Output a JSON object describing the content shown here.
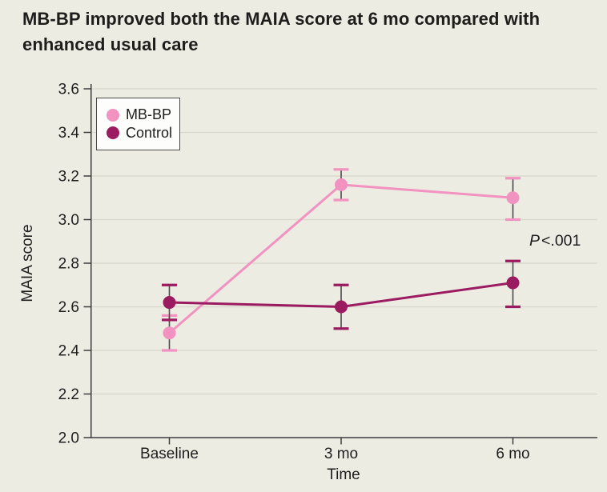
{
  "page": {
    "background_color": "#EDECE3"
  },
  "header": {
    "title_lines": [
      "MB-BP improved both the MAIA score at 6 mo compared with",
      "enhanced usual care"
    ]
  },
  "chart_data": {
    "type": "line",
    "categories": [
      "Baseline",
      "3 mo",
      "6 mo"
    ],
    "series": [
      {
        "name": "MB-BP",
        "color": "#F192C0",
        "values": [
          2.48,
          3.16,
          3.1
        ],
        "ci_low": [
          2.4,
          3.09,
          3.0
        ],
        "ci_high": [
          2.56,
          3.23,
          3.19
        ]
      },
      {
        "name": "Control",
        "color": "#9B1B60",
        "values": [
          2.62,
          2.6,
          2.71
        ],
        "ci_low": [
          2.54,
          2.5,
          2.6
        ],
        "ci_high": [
          2.7,
          2.7,
          2.81
        ]
      }
    ],
    "xlabel": "Time",
    "ylabel": "MAIA score",
    "ylim": [
      2.0,
      3.6
    ],
    "ytick_step": 0.2,
    "ytick_labels": [
      "2.0",
      "2.2",
      "2.4",
      "2.6",
      "2.8",
      "3.0",
      "3.2",
      "3.4",
      "3.6"
    ],
    "grid": true,
    "legend_position": "upper-left",
    "annotation": {
      "p_italic": "P",
      "p_rest": "<.001"
    },
    "colors": {
      "gridline": "#DBD9CE",
      "axis": "#3C3C3C",
      "error_bar_stem": "#4A4A4A",
      "tick_text": "#1E1E1E"
    }
  }
}
